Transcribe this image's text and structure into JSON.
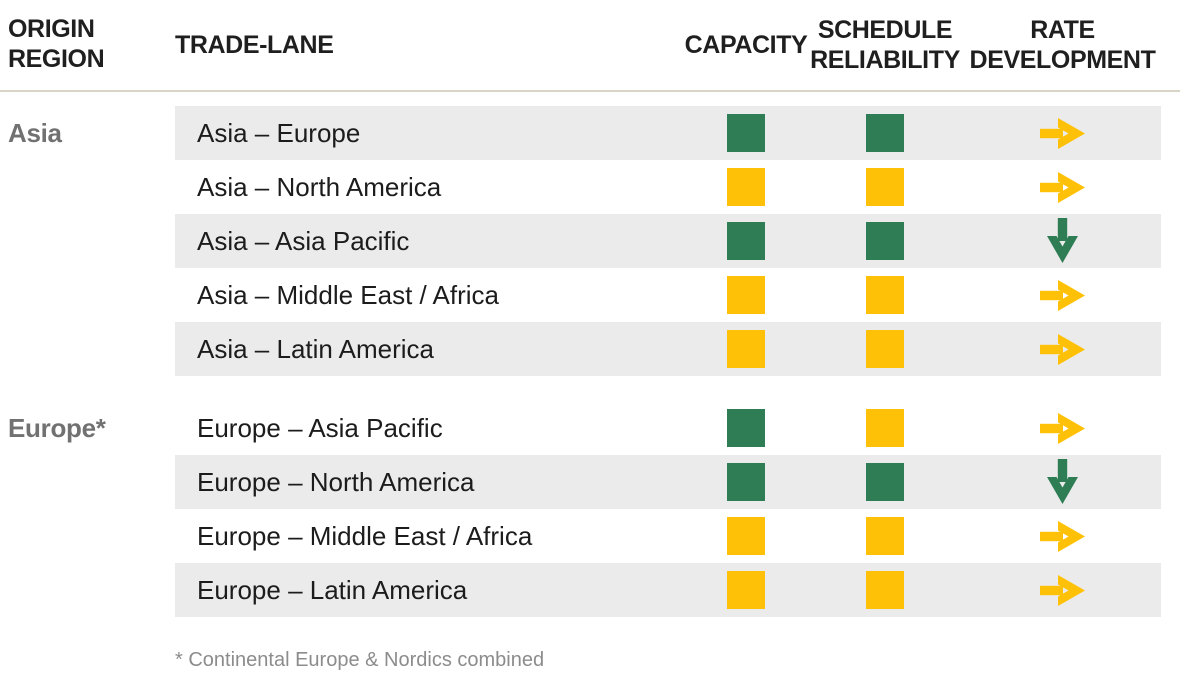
{
  "header": {
    "origin_region": "ORIGIN\nREGION",
    "trade_lane": "TRADE-LANE",
    "capacity": "CAPACITY",
    "schedule_reliability": "SCHEDULE\nRELIABILITY",
    "rate_development": "RATE\nDEVELOPMENT"
  },
  "sections": [
    {
      "region": "Asia",
      "rows": [
        {
          "lane": "Asia – Europe",
          "capacity": "green",
          "schedule_reliability": "green",
          "rate_development": {
            "arrow": "right",
            "color": "yellow"
          }
        },
        {
          "lane": "Asia – North America",
          "capacity": "yellow",
          "schedule_reliability": "yellow",
          "rate_development": {
            "arrow": "right",
            "color": "yellow"
          }
        },
        {
          "lane": "Asia – Asia Pacific",
          "capacity": "green",
          "schedule_reliability": "green",
          "rate_development": {
            "arrow": "down",
            "color": "green"
          }
        },
        {
          "lane": "Asia – Middle East / Africa",
          "capacity": "yellow",
          "schedule_reliability": "yellow",
          "rate_development": {
            "arrow": "right",
            "color": "yellow"
          }
        },
        {
          "lane": "Asia – Latin America",
          "capacity": "yellow",
          "schedule_reliability": "yellow",
          "rate_development": {
            "arrow": "right",
            "color": "yellow"
          }
        }
      ]
    },
    {
      "region": "Europe*",
      "rows": [
        {
          "lane": "Europe – Asia Pacific",
          "capacity": "green",
          "schedule_reliability": "yellow",
          "rate_development": {
            "arrow": "right",
            "color": "yellow"
          }
        },
        {
          "lane": "Europe – North America",
          "capacity": "green",
          "schedule_reliability": "green",
          "rate_development": {
            "arrow": "down",
            "color": "green"
          }
        },
        {
          "lane": "Europe – Middle East / Africa",
          "capacity": "yellow",
          "schedule_reliability": "yellow",
          "rate_development": {
            "arrow": "right",
            "color": "yellow"
          }
        },
        {
          "lane": "Europe – Latin America",
          "capacity": "yellow",
          "schedule_reliability": "yellow",
          "rate_development": {
            "arrow": "right",
            "color": "yellow"
          }
        }
      ]
    }
  ],
  "footnote": "* Continental Europe & Nordics combined",
  "colors": {
    "green": "#2E7D54",
    "yellow": "#FFC107",
    "row_alt": "#EBEBEB",
    "separator": "#D8D4C6",
    "header_text": "#1F1F1F",
    "region_label_text": "#717171",
    "footnote_text": "#8C8C8C"
  }
}
